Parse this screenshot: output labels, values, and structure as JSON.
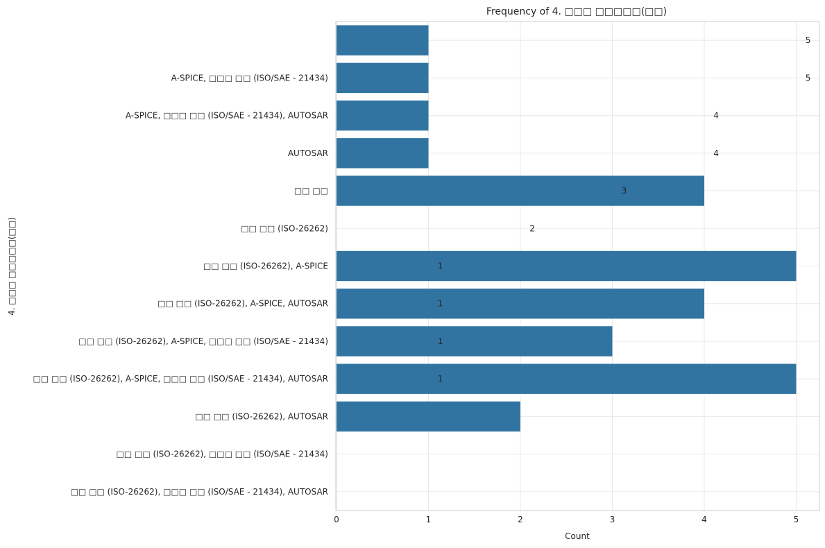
{
  "chart_data": {
    "type": "bar",
    "orientation": "horizontal",
    "title": "Frequency of 4. □□□ □□□□□(□□)",
    "xlabel": "Count",
    "ylabel": "4. □□□ □□□□□(□□)",
    "xlim": [
      0,
      5.25
    ],
    "xticks": [
      "0",
      "1",
      "2",
      "3",
      "4",
      "5"
    ],
    "grid": true,
    "bar_color": "#3274a1",
    "categories": [
      "",
      "A-SPICE, □□□ □□ (ISO/SAE - 21434)",
      "A-SPICE, □□□ □□ (ISO/SAE - 21434), AUTOSAR",
      "AUTOSAR",
      "□□ □□",
      "□□ □□ (ISO-26262)",
      "□□ □□ (ISO-26262), A-SPICE",
      "□□ □□ (ISO-26262), A-SPICE, AUTOSAR",
      "□□ □□ (ISO-26262), A-SPICE, □□□ □□ (ISO/SAE - 21434)",
      "□□ □□ (ISO-26262), A-SPICE, □□□ □□ (ISO/SAE - 21434), AUTOSAR",
      "□□ □□ (ISO-26262), AUTOSAR",
      "□□ □□ (ISO-26262), □□□ □□ (ISO/SAE - 21434)",
      "□□ □□ (ISO-26262), □□□ □□ (ISO/SAE - 21434), AUTOSAR"
    ],
    "values": [
      1,
      1,
      1,
      1,
      4,
      0,
      5,
      4,
      3,
      5,
      2,
      0,
      0
    ],
    "annotations": [
      {
        "row": 0,
        "x": 5.1,
        "text": "5"
      },
      {
        "row": 1,
        "x": 5.1,
        "text": "5"
      },
      {
        "row": 2,
        "x": 4.1,
        "text": "4"
      },
      {
        "row": 3,
        "x": 4.1,
        "text": "4"
      },
      {
        "row": 4,
        "x": 3.1,
        "text": "3"
      },
      {
        "row": 5,
        "x": 2.1,
        "text": "2"
      },
      {
        "row": 6,
        "x": 1.1,
        "text": "1"
      },
      {
        "row": 7,
        "x": 1.1,
        "text": "1"
      },
      {
        "row": 8,
        "x": 1.1,
        "text": "1"
      },
      {
        "row": 9,
        "x": 1.1,
        "text": "1"
      }
    ]
  }
}
